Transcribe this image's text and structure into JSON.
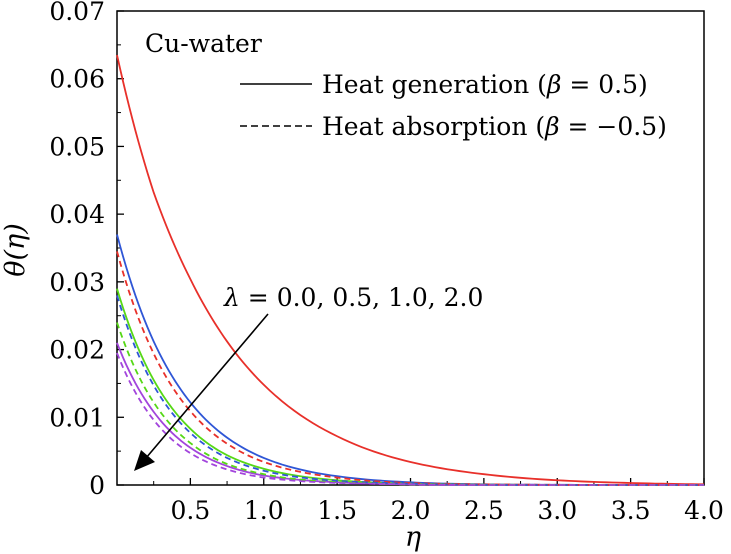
{
  "chart_data": {
    "type": "line",
    "xlabel": "η",
    "ylabel": "θ(η)",
    "xlim": [
      0,
      4.0
    ],
    "ylim": [
      0,
      0.07
    ],
    "grid": false,
    "x_ticks": [
      "0.5",
      "1.0",
      "1.5",
      "2.0",
      "2.5",
      "3.0",
      "3.5",
      "4.0"
    ],
    "y_ticks": [
      "0",
      "0.01",
      "0.02",
      "0.03",
      "0.04",
      "0.05",
      "0.06",
      "0.07"
    ],
    "annotations": {
      "fluid": "Cu-water",
      "legend_solid_prefix": "Heat generation (",
      "legend_solid_beta": "β",
      "legend_solid_value": " = 0.5)",
      "legend_dashed_prefix": "Heat absorption (",
      "legend_dashed_beta": "β",
      "legend_dashed_value": " = −0.5)",
      "param_symbol": "λ",
      "param_values": " = 0.0, 0.5, 1.0, 2.0"
    },
    "legend_placement": "top-right",
    "colors": {
      "lambda_0.0": "#e8302a",
      "lambda_0.5": "#2f56d6",
      "lambda_1.0": "#56d816",
      "lambda_2.0": "#a244dc"
    },
    "series": [
      {
        "style": "solid",
        "color": "#e8302a",
        "x": [
          0,
          0.25,
          0.5,
          0.75,
          1.0,
          1.5,
          2.0,
          2.5,
          3.0,
          3.5,
          4.0
        ],
        "y": [
          0.0635,
          0.0432,
          0.0304,
          0.0212,
          0.0148,
          0.0072,
          0.0034,
          0.0016,
          0.0007,
          0.0003,
          0.0001
        ]
      },
      {
        "style": "solid",
        "color": "#2f56d6",
        "x": [
          0,
          0.25,
          0.5,
          0.75,
          1.0,
          1.5,
          2.0,
          2.5,
          3.0,
          3.5,
          4.0
        ],
        "y": [
          0.037,
          0.0212,
          0.0122,
          0.007,
          0.004,
          0.0013,
          0.0004,
          0.0001,
          3e-05,
          1e-05,
          0.0
        ]
      },
      {
        "style": "solid",
        "color": "#56d816",
        "x": [
          0,
          0.25,
          0.5,
          0.75,
          1.0,
          1.5,
          2.0,
          2.5,
          3.0,
          3.5,
          4.0
        ],
        "y": [
          0.029,
          0.0155,
          0.0083,
          0.0044,
          0.0024,
          0.0007,
          0.0002,
          5e-05,
          1e-05,
          0.0,
          0.0
        ]
      },
      {
        "style": "solid",
        "color": "#a244dc",
        "x": [
          0,
          0.25,
          0.5,
          0.75,
          1.0,
          1.5,
          2.0,
          2.5,
          3.0,
          3.5,
          4.0
        ],
        "y": [
          0.021,
          0.0108,
          0.0055,
          0.0028,
          0.0014,
          0.0004,
          0.0001,
          3e-05,
          0.0,
          0.0,
          0.0
        ]
      },
      {
        "style": "dashed",
        "color": "#e8302a",
        "x": [
          0,
          0.25,
          0.5,
          0.75,
          1.0,
          1.5,
          2.0,
          2.5,
          3.0,
          3.5,
          4.0
        ],
        "y": [
          0.0345,
          0.0194,
          0.0109,
          0.0061,
          0.0034,
          0.0011,
          0.0003,
          0.0001,
          3e-05,
          0.0,
          0.0
        ]
      },
      {
        "style": "dashed",
        "color": "#2f56d6",
        "x": [
          0,
          0.25,
          0.5,
          0.75,
          1.0,
          1.5,
          2.0,
          2.5,
          3.0,
          3.5,
          4.0
        ],
        "y": [
          0.028,
          0.0147,
          0.0077,
          0.004,
          0.0021,
          0.0006,
          0.0002,
          4e-05,
          0.0,
          0.0,
          0.0
        ]
      },
      {
        "style": "dashed",
        "color": "#56d816",
        "x": [
          0,
          0.25,
          0.5,
          0.75,
          1.0,
          1.5,
          2.0,
          2.5,
          3.0,
          3.5,
          4.0
        ],
        "y": [
          0.024,
          0.0122,
          0.0062,
          0.0031,
          0.0016,
          0.0004,
          0.0001,
          3e-05,
          0.0,
          0.0,
          0.0
        ]
      },
      {
        "style": "dashed",
        "color": "#a244dc",
        "x": [
          0,
          0.25,
          0.5,
          0.75,
          1.0,
          1.5,
          2.0,
          2.5,
          3.0,
          3.5,
          4.0
        ],
        "y": [
          0.0195,
          0.0096,
          0.0047,
          0.0023,
          0.0011,
          0.0003,
          0.0001,
          0.0,
          0.0,
          0.0,
          0.0
        ]
      }
    ]
  }
}
